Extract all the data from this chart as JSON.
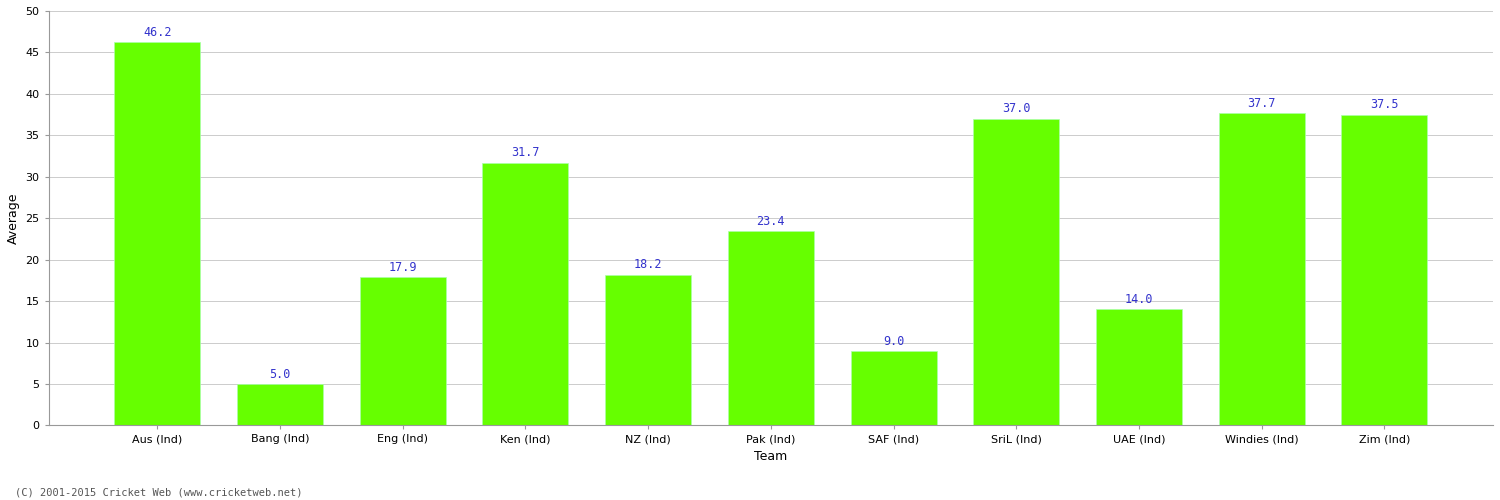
{
  "categories": [
    "Aus (Ind)",
    "Bang (Ind)",
    "Eng (Ind)",
    "Ken (Ind)",
    "NZ (Ind)",
    "Pak (Ind)",
    "SAF (Ind)",
    "SriL (Ind)",
    "UAE (Ind)",
    "Windies (Ind)",
    "Zim (Ind)"
  ],
  "values": [
    46.2,
    5.0,
    17.9,
    31.7,
    18.2,
    23.4,
    9.0,
    37.0,
    14.0,
    37.7,
    37.5
  ],
  "bar_color": "#66ff00",
  "bar_edge_color": "#aaffaa",
  "label_color": "#3333cc",
  "xlabel": "Team",
  "ylabel": "Average",
  "ylim": [
    0,
    50
  ],
  "yticks": [
    0,
    5,
    10,
    15,
    20,
    25,
    30,
    35,
    40,
    45,
    50
  ],
  "grid_color": "#cccccc",
  "background_color": "#ffffff",
  "footer": "(C) 2001-2015 Cricket Web (www.cricketweb.net)",
  "label_fontsize": 8.5,
  "axis_label_fontsize": 9,
  "tick_fontsize": 8,
  "footer_fontsize": 7.5,
  "bar_width": 0.7
}
